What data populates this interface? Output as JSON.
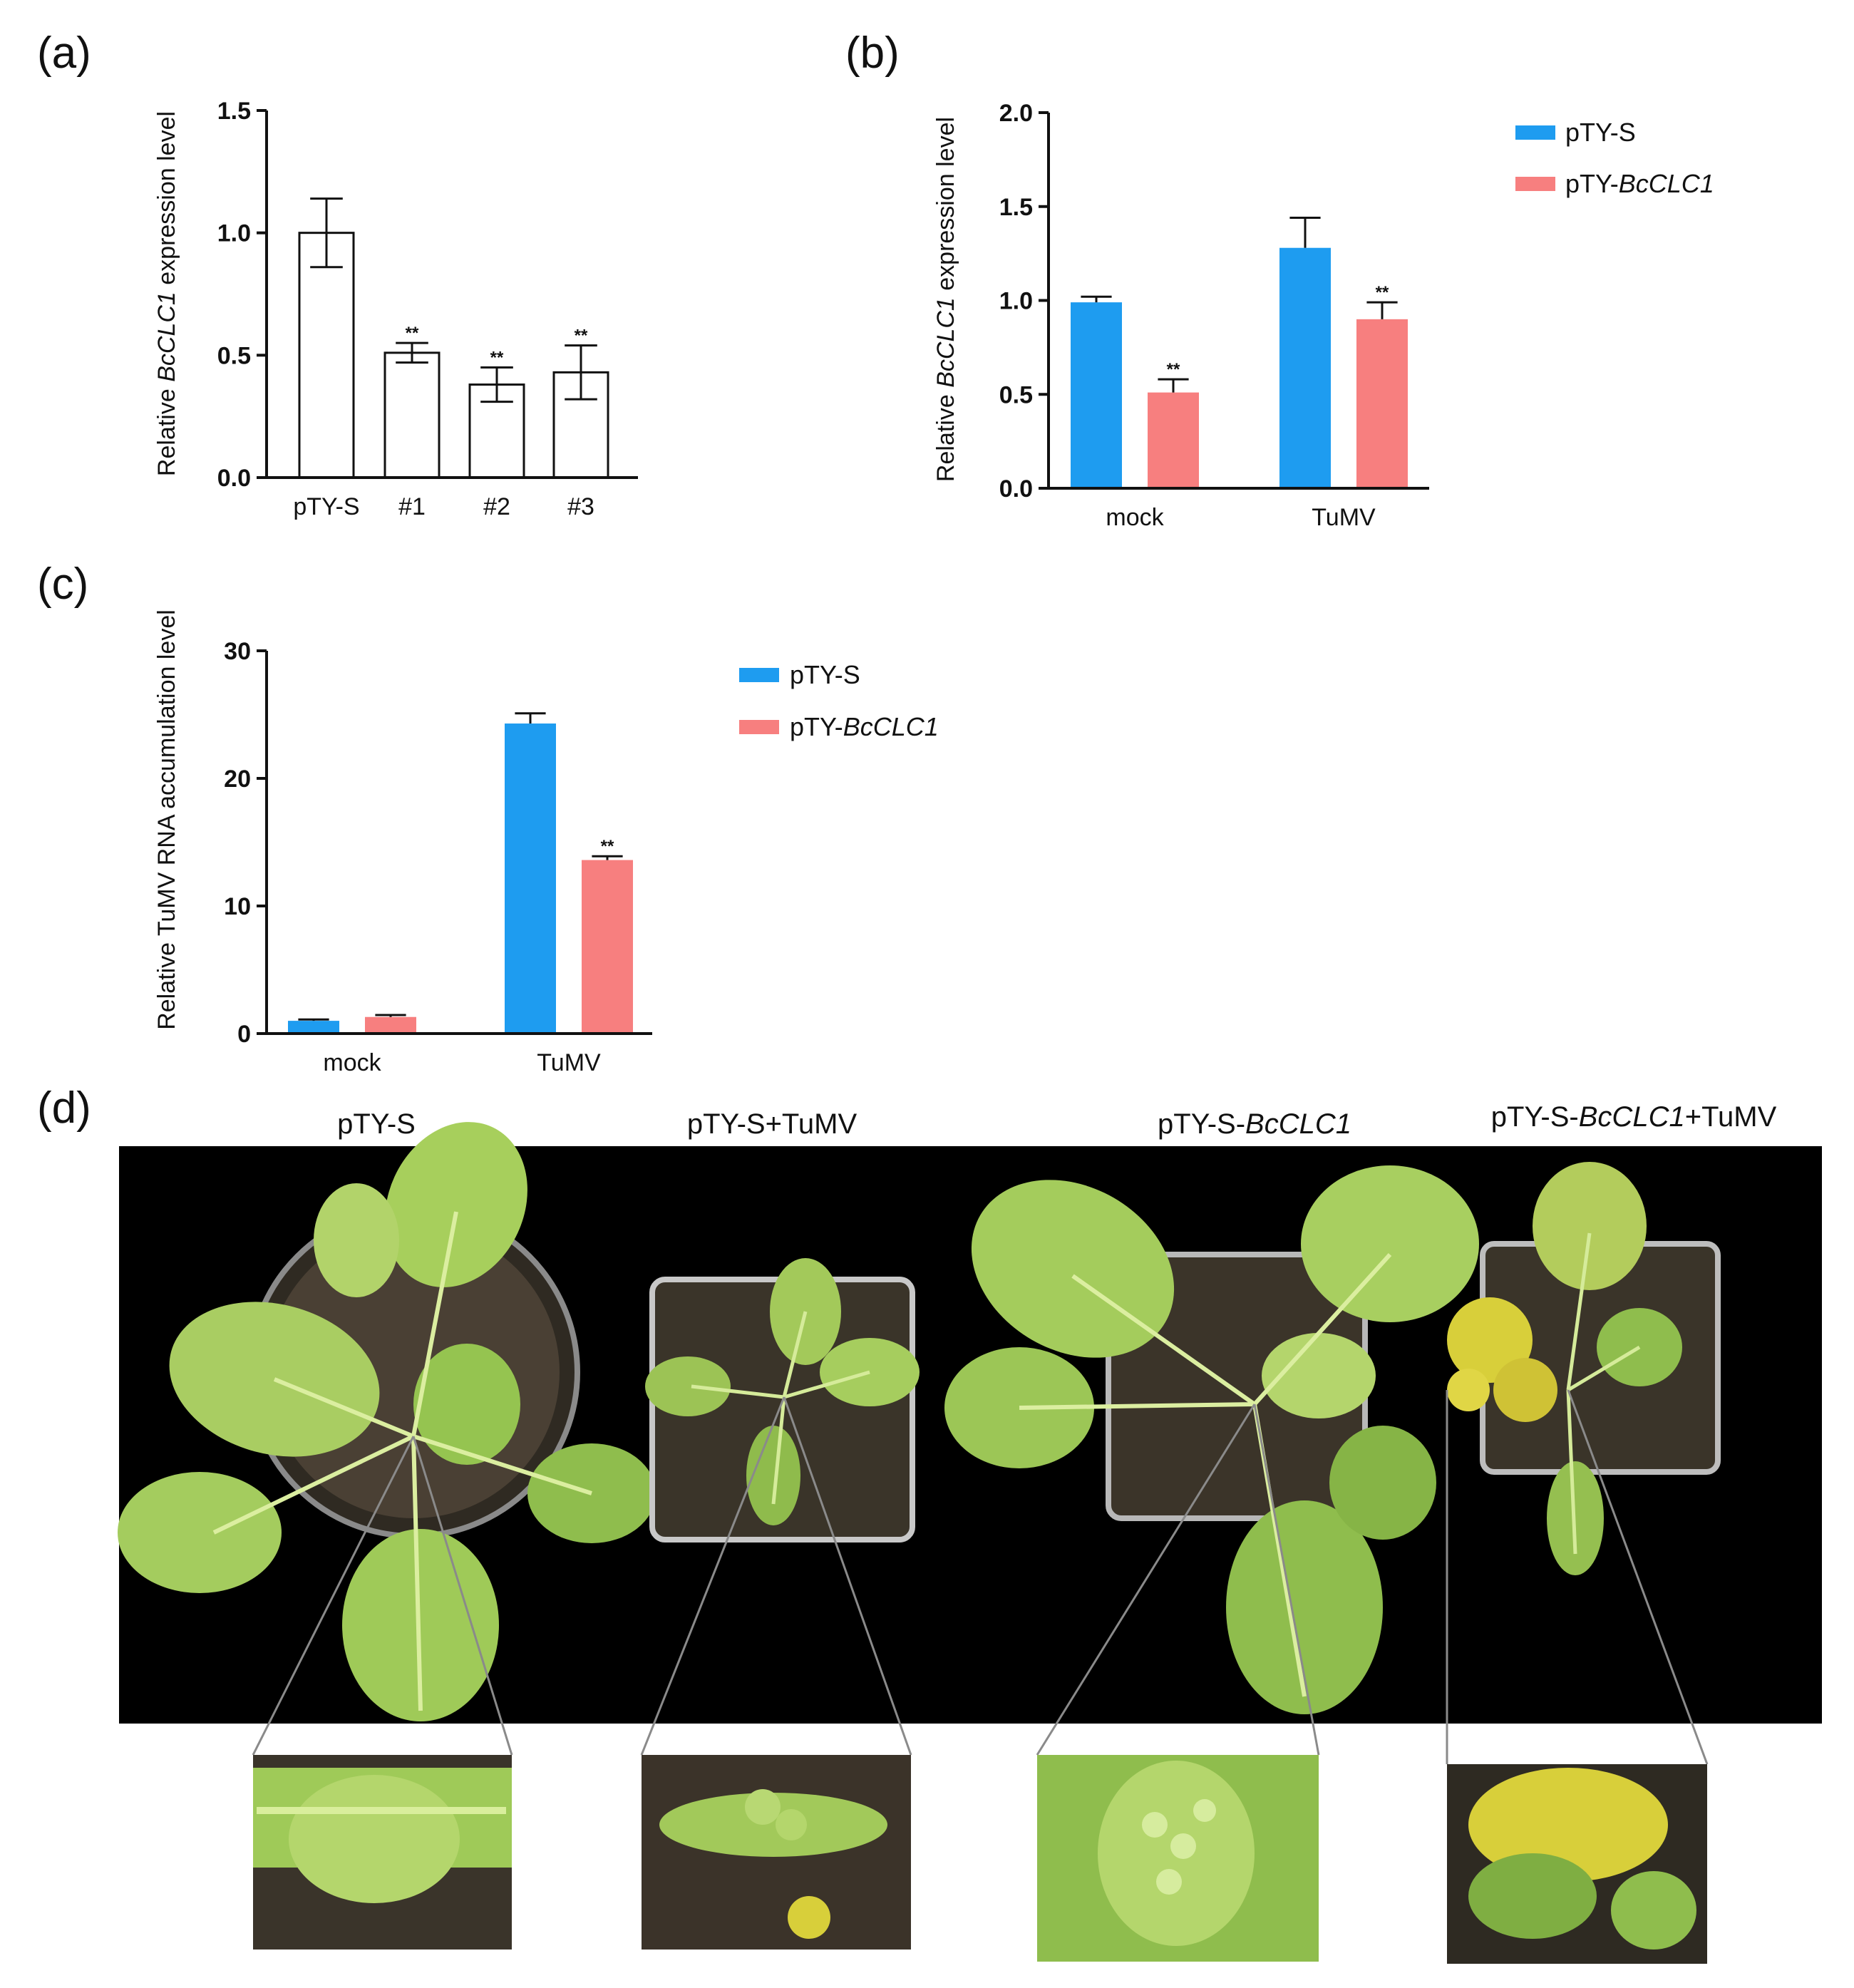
{
  "panels": {
    "a": "(a)",
    "b": "(b)",
    "c": "(c)",
    "d": "(d)"
  },
  "colors": {
    "ptys": "#1e9cf0",
    "bcclc1": "#f77f7f",
    "photo_bg": "#000000",
    "leaf": "#9cc85a",
    "leaf_dark": "#6d9a3a",
    "soil": "#3b3328",
    "flower": "#d8cf3a"
  },
  "chart_data": [
    {
      "id": "a",
      "type": "bar",
      "categories": [
        "pTY-S",
        "#1",
        "#2",
        "#3"
      ],
      "values": [
        1.0,
        0.51,
        0.38,
        0.43
      ],
      "errors": [
        0.14,
        0.04,
        0.07,
        0.11
      ],
      "significance": [
        "",
        "**",
        "**",
        "**"
      ],
      "ylabel_pre": "Relative ",
      "ylabel_gene": "BcCLC1",
      "ylabel_post": " expression level",
      "ylim": [
        0,
        1.5
      ],
      "yticks": [
        "0.0",
        "0.5",
        "1.0",
        "1.5"
      ],
      "bar_fill": "#ffffff"
    },
    {
      "id": "b",
      "type": "bar",
      "categories": [
        "mock",
        "TuMV"
      ],
      "series": [
        {
          "name": "pTY-S",
          "values": [
            0.99,
            1.28
          ],
          "errors": [
            0.03,
            0.16
          ],
          "significance": [
            "",
            ""
          ]
        },
        {
          "name": "pTY-BcCLC1",
          "values": [
            0.51,
            0.9
          ],
          "errors": [
            0.07,
            0.09
          ],
          "significance": [
            "**",
            "**"
          ]
        }
      ],
      "ylabel_pre": "Relative ",
      "ylabel_gene": "BcCLC1",
      "ylabel_post": " expression level",
      "ylim": [
        0,
        2.0
      ],
      "yticks": [
        "0.0",
        "0.5",
        "1.0",
        "1.5",
        "2.0"
      ],
      "legend": [
        {
          "plain": "pTY-",
          "italic": "S",
          "italic_flag": false
        },
        {
          "plain": "pTY-",
          "italic": "BcCLC1",
          "italic_flag": true
        }
      ],
      "legend_position": "top-right"
    },
    {
      "id": "c",
      "type": "bar",
      "categories": [
        "mock",
        "TuMV"
      ],
      "series": [
        {
          "name": "pTY-S",
          "values": [
            1.0,
            24.3
          ],
          "errors": [
            0.1,
            0.8
          ],
          "significance": [
            "",
            ""
          ]
        },
        {
          "name": "pTY-BcCLC1",
          "values": [
            1.3,
            13.6
          ],
          "errors": [
            0.15,
            0.3
          ],
          "significance": [
            "",
            "**"
          ]
        }
      ],
      "ylabel": "Relative TuMV RNA accumulation level",
      "ylim": [
        0,
        30
      ],
      "yticks": [
        "0",
        "10",
        "20",
        "30"
      ],
      "legend_position": "top-right"
    }
  ],
  "legend_b": {
    "item1": "pTY-S",
    "item2_plain": "pTY-",
    "item2_italic": "BcCLC1"
  },
  "legend_c": {
    "item1": "pTY-S",
    "item2_plain": "pTY-",
    "item2_italic": "BcCLC1"
  },
  "panel_d": {
    "labels": [
      {
        "plain": "pTY-S",
        "italic": "",
        "suffix": ""
      },
      {
        "plain": "pTY-S+TuMV",
        "italic": "",
        "suffix": ""
      },
      {
        "plain": "pTY-S-",
        "italic": "BcCLC1",
        "suffix": ""
      },
      {
        "plain": "pTY-S-",
        "italic": "BcCLC1",
        "suffix": "+TuMV"
      }
    ]
  }
}
